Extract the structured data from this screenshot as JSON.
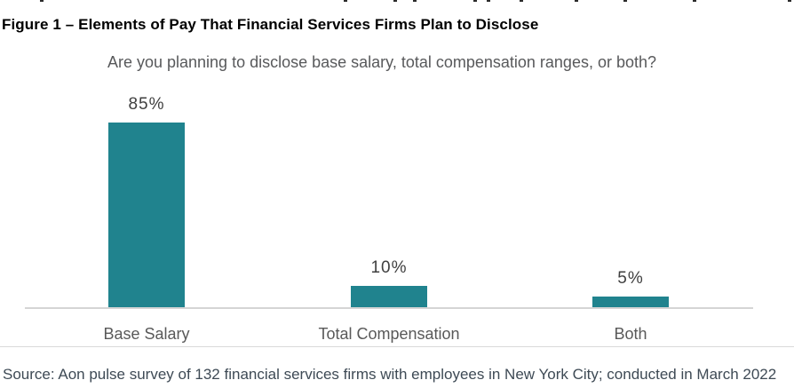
{
  "figure": {
    "title": "Figure 1 – Elements of Pay That Financial Services Firms Plan to Disclose",
    "source": "Source: Aon pulse survey of 132 financial services firms with employees in New York City; conducted in March 2022"
  },
  "chart_data": {
    "type": "bar",
    "title": "Are you planning to disclose base salary, total compensation ranges, or both?",
    "categories": [
      "Base Salary",
      "Total Compensation",
      "Both"
    ],
    "values": [
      85,
      10,
      5
    ],
    "value_labels": [
      "85%",
      "10%",
      "5%"
    ],
    "unit": "%",
    "ylim": [
      0,
      100
    ],
    "grid": false,
    "legend": false,
    "data_labels_position": "above-bar",
    "bar_color": "#20838e",
    "axis_line_color": "#d5d5d5"
  },
  "top_cropped_line": {
    "note": "bottom fragments of a text line cut off by the screenshot crop",
    "fragment_x_positions": [
      45,
      387,
      443,
      465,
      533,
      548,
      585,
      647,
      702,
      780,
      887
    ],
    "color": "#2a2a2a"
  },
  "colors": {
    "background": "#ffffff",
    "title_text": "#000000",
    "question_text": "#58595b",
    "value_label_text": "#3f3f3f",
    "category_label_text": "#595959",
    "source_text": "#3e4a55",
    "divider": "#d9d9d9"
  }
}
